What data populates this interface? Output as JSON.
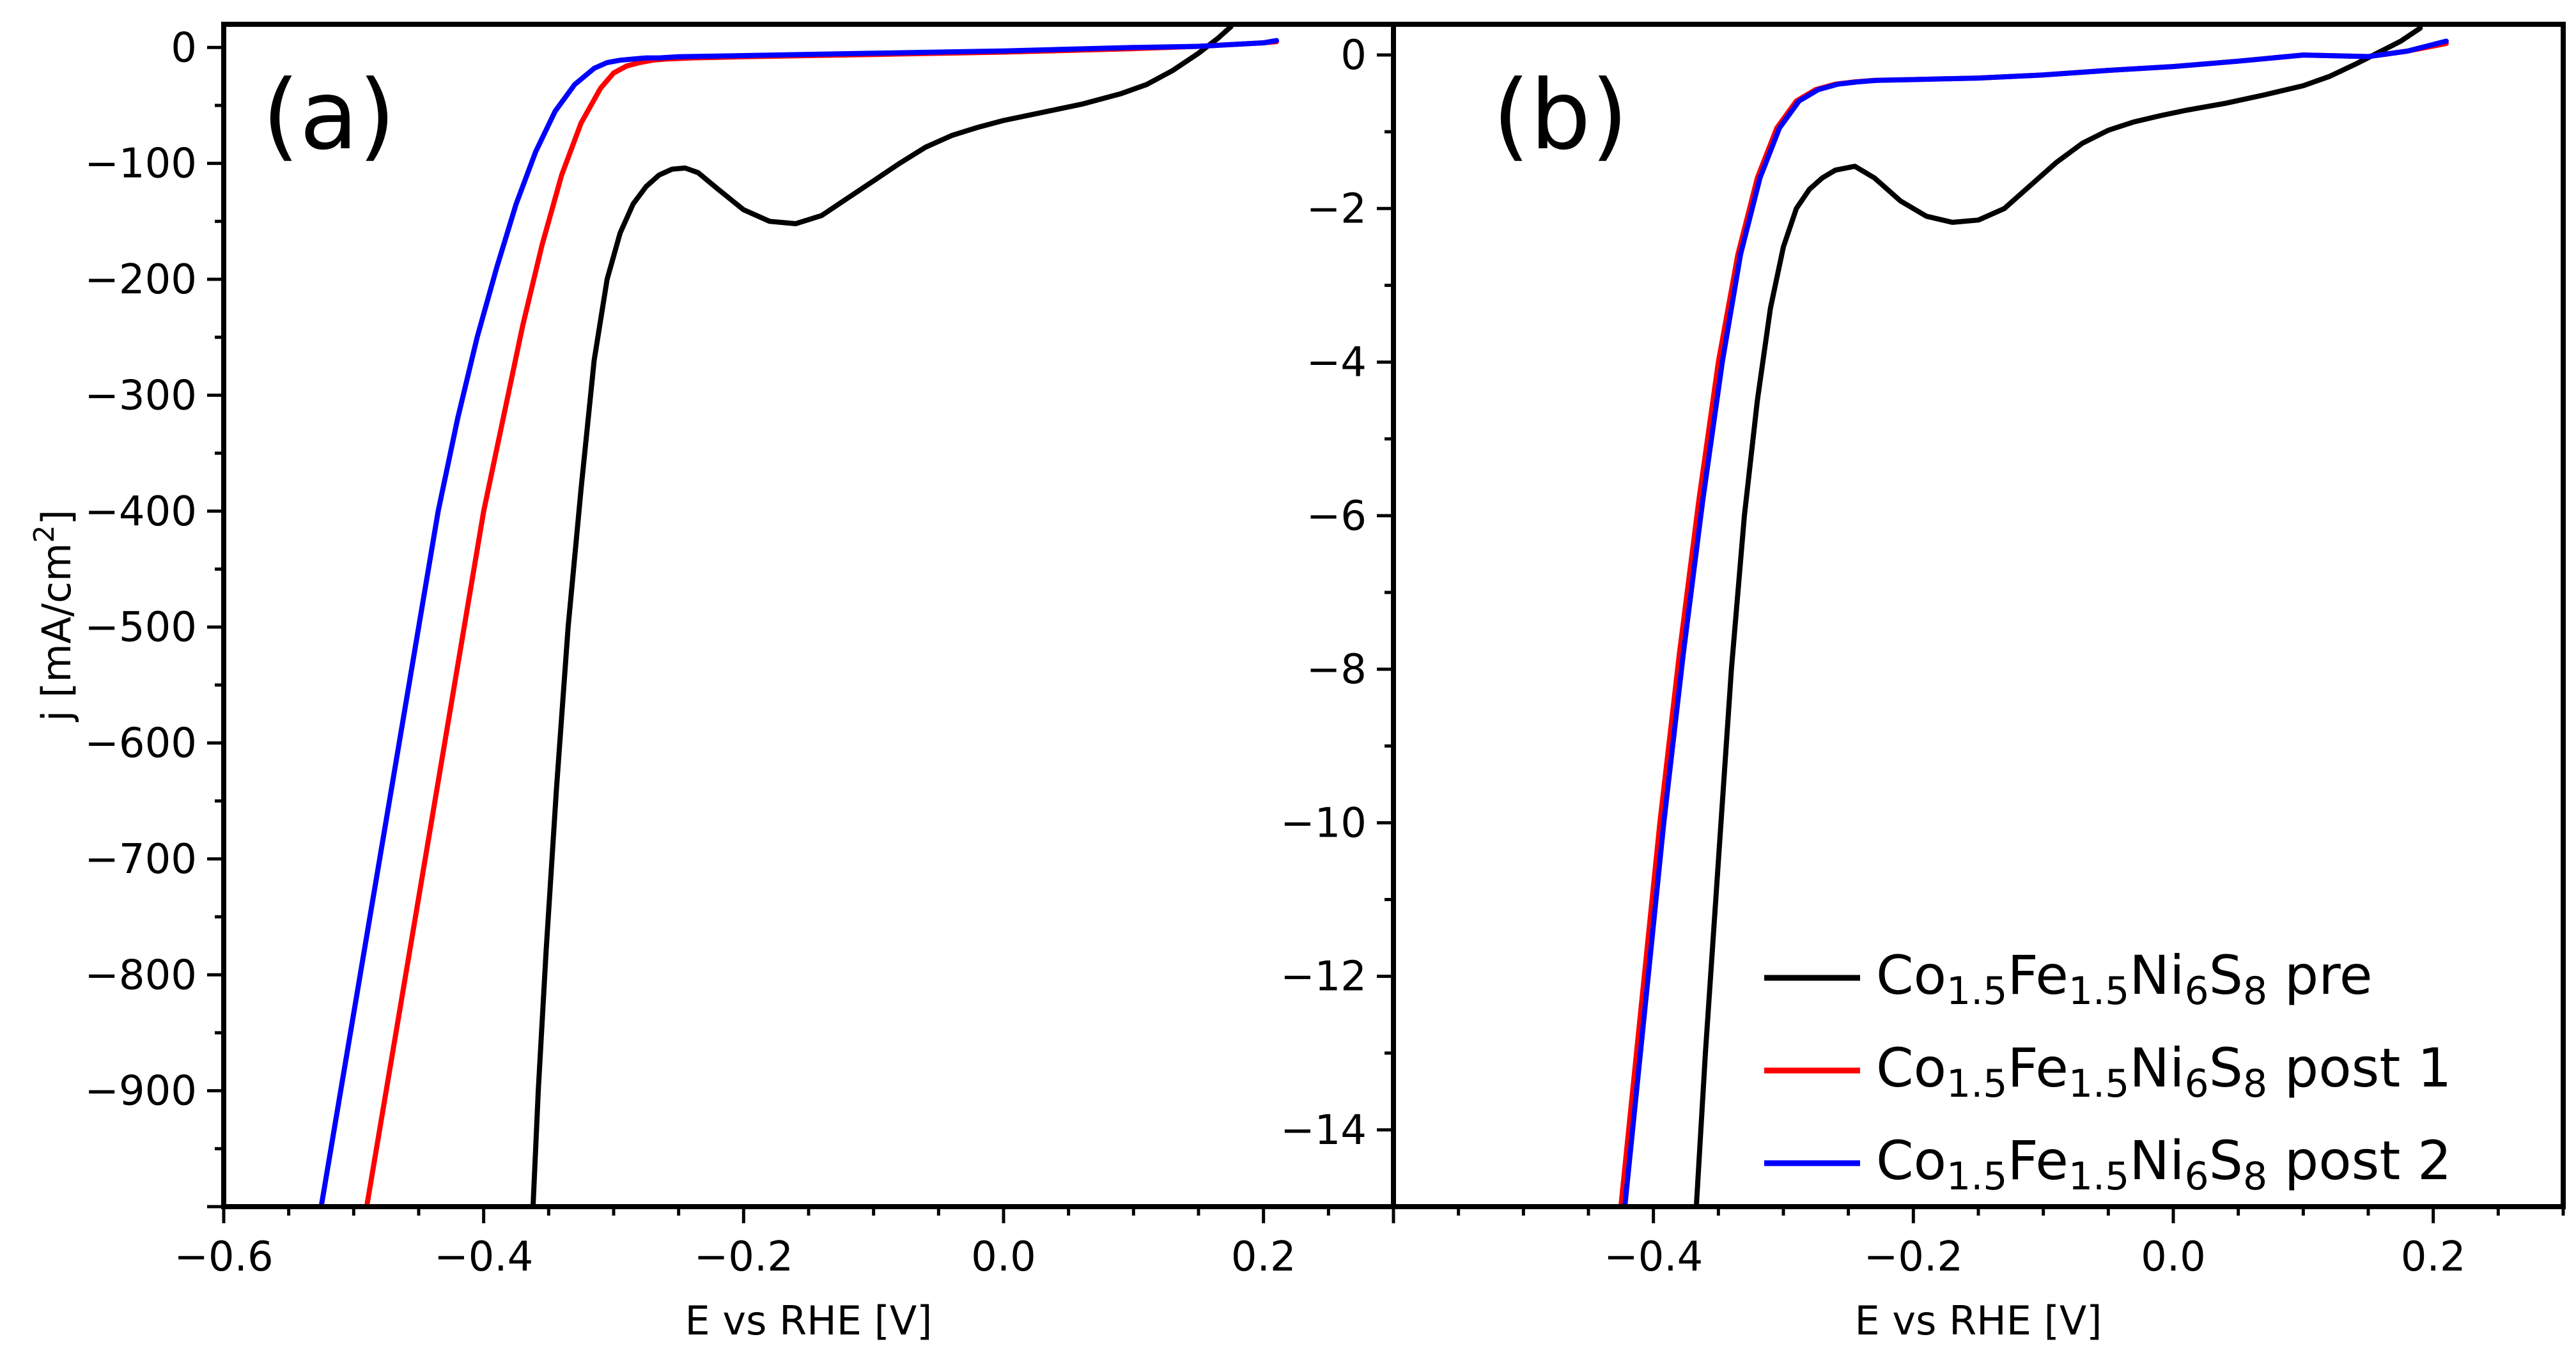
{
  "chart_data": [
    {
      "panel": "(a)",
      "type": "line",
      "xlabel": "E vs RHE [V]",
      "ylabel": "j [mA/cm",
      "ylabel_sup": "2",
      "ylabel_close": "]",
      "xlim": [
        -0.6,
        0.3
      ],
      "ylim": [
        -1000,
        20
      ],
      "xticks": [
        -0.6,
        -0.4,
        -0.2,
        0.0,
        0.2
      ],
      "xtick_labels": [
        "−0.6",
        "−0.4",
        "−0.2",
        "0.0",
        "0.2"
      ],
      "yticks": [
        0,
        -100,
        -200,
        -300,
        -400,
        -500,
        -600,
        -700,
        -800,
        -900
      ],
      "ytick_labels": [
        "0",
        "−100",
        "−200",
        "−300",
        "−400",
        "−500",
        "−600",
        "−700",
        "−800",
        "−900"
      ],
      "series": [
        {
          "name": "Co1.5Fe1.5Ni6S8 pre",
          "color": "#000000",
          "x": [
            -0.362,
            -0.358,
            -0.352,
            -0.344,
            -0.335,
            -0.325,
            -0.315,
            -0.305,
            -0.295,
            -0.285,
            -0.275,
            -0.265,
            -0.255,
            -0.245,
            -0.235,
            -0.22,
            -0.2,
            -0.18,
            -0.16,
            -0.14,
            -0.12,
            -0.1,
            -0.08,
            -0.06,
            -0.04,
            -0.02,
            0.0,
            0.03,
            0.06,
            0.09,
            0.11,
            0.13,
            0.15,
            0.165,
            0.175
          ],
          "y": [
            -1000,
            -900,
            -780,
            -640,
            -500,
            -380,
            -270,
            -200,
            -160,
            -135,
            -120,
            -110,
            -105,
            -104,
            -108,
            -122,
            -140,
            -150,
            -152,
            -145,
            -130,
            -115,
            -100,
            -86,
            -76,
            -69,
            -63,
            -56,
            -49,
            -40,
            -32,
            -20,
            -5,
            8,
            18
          ]
        },
        {
          "name": "Co1.5Fe1.5Ni6S8 post 1",
          "color": "#ff0000",
          "x": [
            -0.49,
            -0.475,
            -0.46,
            -0.445,
            -0.43,
            -0.415,
            -0.4,
            -0.385,
            -0.37,
            -0.355,
            -0.34,
            -0.325,
            -0.31,
            -0.3,
            -0.29,
            -0.28,
            -0.27,
            -0.26,
            -0.24,
            -0.2,
            -0.1,
            0.0,
            0.1,
            0.15,
            0.2,
            0.21
          ],
          "y": [
            -1000,
            -900,
            -800,
            -700,
            -600,
            -500,
            -400,
            -320,
            -240,
            -170,
            -110,
            -65,
            -35,
            -22,
            -16,
            -13,
            -11,
            -10,
            -9,
            -8,
            -6,
            -4,
            -1,
            1,
            4,
            5
          ]
        },
        {
          "name": "Co1.5Fe1.5Ni6S8 post 2",
          "color": "#0000ff",
          "x": [
            -0.525,
            -0.51,
            -0.495,
            -0.48,
            -0.465,
            -0.45,
            -0.435,
            -0.42,
            -0.405,
            -0.39,
            -0.375,
            -0.36,
            -0.345,
            -0.33,
            -0.315,
            -0.305,
            -0.295,
            -0.285,
            -0.275,
            -0.265,
            -0.25,
            -0.2,
            -0.1,
            0.0,
            0.1,
            0.15,
            0.2,
            0.21
          ],
          "y": [
            -1000,
            -900,
            -800,
            -700,
            -600,
            -500,
            -400,
            -320,
            -250,
            -190,
            -135,
            -90,
            -55,
            -32,
            -18,
            -13,
            -11,
            -10,
            -9,
            -9,
            -8,
            -7,
            -5,
            -3,
            0,
            1,
            4,
            6
          ]
        }
      ]
    },
    {
      "panel": "(b)",
      "type": "line",
      "xlabel": "E vs RHE [V]",
      "xlim": [
        -0.6,
        0.3
      ],
      "ylim": [
        -15,
        0.4
      ],
      "xticks": [
        -0.4,
        -0.2,
        0.0,
        0.2
      ],
      "xtick_labels": [
        "−0.4",
        "−0.2",
        "0.0",
        "0.2"
      ],
      "yticks": [
        0,
        -2,
        -4,
        -6,
        -8,
        -10,
        -12,
        -14
      ],
      "ytick_labels": [
        "0",
        "−2",
        "−4",
        "−6",
        "−8",
        "−10",
        "−12",
        "−14"
      ],
      "series": [
        {
          "name": "Co1.5Fe1.5Ni6S8 pre",
          "color": "#000000",
          "x": [
            -0.367,
            -0.36,
            -0.35,
            -0.34,
            -0.33,
            -0.32,
            -0.31,
            -0.3,
            -0.29,
            -0.28,
            -0.27,
            -0.26,
            -0.245,
            -0.23,
            -0.21,
            -0.19,
            -0.17,
            -0.15,
            -0.13,
            -0.11,
            -0.09,
            -0.07,
            -0.05,
            -0.03,
            -0.01,
            0.01,
            0.04,
            0.07,
            0.1,
            0.12,
            0.14,
            0.16,
            0.175,
            0.19
          ],
          "y": [
            -15,
            -13,
            -10.5,
            -8,
            -6,
            -4.5,
            -3.3,
            -2.5,
            -2.0,
            -1.75,
            -1.6,
            -1.5,
            -1.45,
            -1.6,
            -1.9,
            -2.1,
            -2.18,
            -2.15,
            -2.0,
            -1.7,
            -1.4,
            -1.15,
            -0.98,
            -0.87,
            -0.79,
            -0.72,
            -0.63,
            -0.52,
            -0.4,
            -0.28,
            -0.12,
            0.05,
            0.18,
            0.35
          ]
        },
        {
          "name": "Co1.5Fe1.5Ni6S8 post 1",
          "color": "#ff0000",
          "x": [
            -0.425,
            -0.41,
            -0.395,
            -0.38,
            -0.365,
            -0.35,
            -0.335,
            -0.32,
            -0.305,
            -0.29,
            -0.275,
            -0.26,
            -0.245,
            -0.23,
            -0.2,
            -0.15,
            -0.1,
            -0.05,
            0.0,
            0.05,
            0.1,
            0.15,
            0.18,
            0.21
          ],
          "y": [
            -15,
            -12.5,
            -10,
            -7.8,
            -5.8,
            -4.0,
            -2.6,
            -1.6,
            -0.95,
            -0.6,
            -0.45,
            -0.38,
            -0.35,
            -0.33,
            -0.32,
            -0.3,
            -0.26,
            -0.2,
            -0.15,
            -0.08,
            0.0,
            -0.02,
            0.05,
            0.15
          ]
        },
        {
          "name": "Co1.5Fe1.5Ni6S8 post 2",
          "color": "#0000ff",
          "x": [
            -0.422,
            -0.407,
            -0.392,
            -0.377,
            -0.362,
            -0.347,
            -0.333,
            -0.318,
            -0.303,
            -0.288,
            -0.273,
            -0.258,
            -0.243,
            -0.228,
            -0.2,
            -0.15,
            -0.1,
            -0.05,
            0.0,
            0.05,
            0.1,
            0.15,
            0.18,
            0.21
          ],
          "y": [
            -15,
            -12.5,
            -10,
            -7.8,
            -5.8,
            -4.0,
            -2.6,
            -1.6,
            -0.95,
            -0.6,
            -0.45,
            -0.38,
            -0.35,
            -0.33,
            -0.32,
            -0.3,
            -0.26,
            -0.2,
            -0.15,
            -0.08,
            0.0,
            -0.02,
            0.05,
            0.18
          ]
        }
      ],
      "legend": {
        "placement": "bottom-right",
        "entries": [
          {
            "color": "#000000",
            "parts": [
              [
                "Co",
                "n"
              ],
              [
                "1.5",
                "s"
              ],
              [
                "Fe",
                "n"
              ],
              [
                "1.5",
                "s"
              ],
              [
                "Ni",
                "n"
              ],
              [
                "6",
                "s"
              ],
              [
                "S",
                "n"
              ],
              [
                "8",
                "s"
              ],
              [
                " pre",
                "n"
              ]
            ]
          },
          {
            "color": "#ff0000",
            "parts": [
              [
                "Co",
                "n"
              ],
              [
                "1.5",
                "s"
              ],
              [
                "Fe",
                "n"
              ],
              [
                "1.5",
                "s"
              ],
              [
                "Ni",
                "n"
              ],
              [
                "6",
                "s"
              ],
              [
                "S",
                "n"
              ],
              [
                "8",
                "s"
              ],
              [
                " post 1",
                "n"
              ]
            ]
          },
          {
            "color": "#0000ff",
            "parts": [
              [
                "Co",
                "n"
              ],
              [
                "1.5",
                "s"
              ],
              [
                "Fe",
                "n"
              ],
              [
                "1.5",
                "s"
              ],
              [
                "Ni",
                "n"
              ],
              [
                "6",
                "s"
              ],
              [
                "S",
                "n"
              ],
              [
                "8",
                "s"
              ],
              [
                " post 2",
                "n"
              ]
            ]
          }
        ]
      }
    }
  ]
}
